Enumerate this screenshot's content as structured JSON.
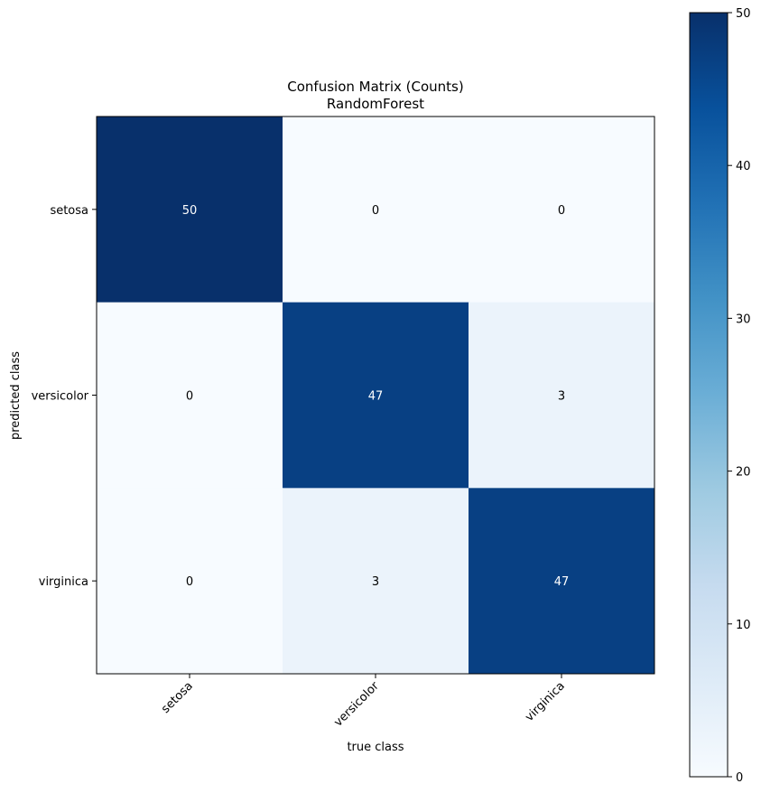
{
  "chart_data": {
    "type": "heatmap",
    "title_line1": "Confusion Matrix (Counts)",
    "title_line2": "RandomForest",
    "xlabel": "true class",
    "ylabel": "predicted class",
    "row_labels": [
      "setosa",
      "versicolor",
      "virginica"
    ],
    "col_labels": [
      "setosa",
      "versicolor",
      "virginica"
    ],
    "values": [
      [
        50,
        0,
        0
      ],
      [
        0,
        47,
        3
      ],
      [
        0,
        3,
        47
      ]
    ],
    "value_range": [
      0,
      50
    ],
    "colorbar_ticks": [
      0,
      10,
      20,
      30,
      40,
      50
    ],
    "colormap": "Blues",
    "text_color_dark": "#000000",
    "text_color_light": "#ffffff"
  }
}
